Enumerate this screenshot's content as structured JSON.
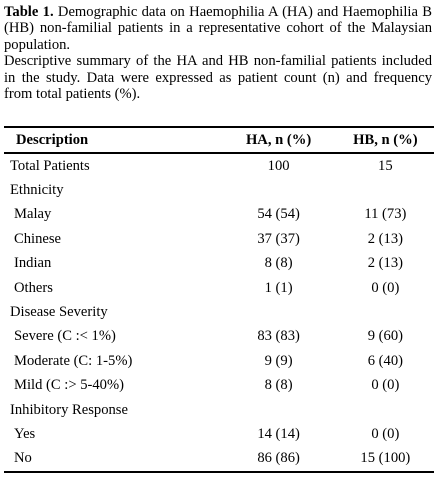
{
  "caption": {
    "label": "Table 1.",
    "title_text": "Demographic data on Haemophilia A (HA) and Haemophilia B (HB) non-familial patients in a representative cohort of the Malaysian population.",
    "description": "Descriptive summary of the HA and HB non-familial patients included in the study. Data were expressed as patient count (n) and frequency from total patients (%)."
  },
  "table": {
    "headers": {
      "description": "Description",
      "ha": "HA, n (%)",
      "hb": "HB, n (%)"
    },
    "rows": [
      {
        "description": "Total Patients",
        "ha": "100",
        "hb": "15"
      },
      {
        "description": "Ethnicity",
        "ha": "",
        "hb": ""
      },
      {
        "description": "Malay",
        "ha": "54 (54)",
        "hb": "11 (73)"
      },
      {
        "description": "Chinese",
        "ha": "37 (37)",
        "hb": "2 (13)"
      },
      {
        "description": "Indian",
        "ha": "8 (8)",
        "hb": "2 (13)"
      },
      {
        "description": "Others",
        "ha": "1 (1)",
        "hb": "0 (0)"
      },
      {
        "description": "Disease Severity",
        "ha": "",
        "hb": ""
      },
      {
        "description": "Severe (C :< 1%)",
        "ha": "83 (83)",
        "hb": "9 (60)"
      },
      {
        "description": "Moderate (C: 1-5%)",
        "ha": "9 (9)",
        "hb": "6 (40)"
      },
      {
        "description": "Mild (C :> 5-40%)",
        "ha": "8 (8)",
        "hb": "0 (0)"
      },
      {
        "description": "Inhibitory Response",
        "ha": "",
        "hb": ""
      },
      {
        "description": "Yes",
        "ha": "14 (14)",
        "hb": "0 (0)"
      },
      {
        "description": "No",
        "ha": "86 (86)",
        "hb": "15 (100)"
      }
    ]
  }
}
